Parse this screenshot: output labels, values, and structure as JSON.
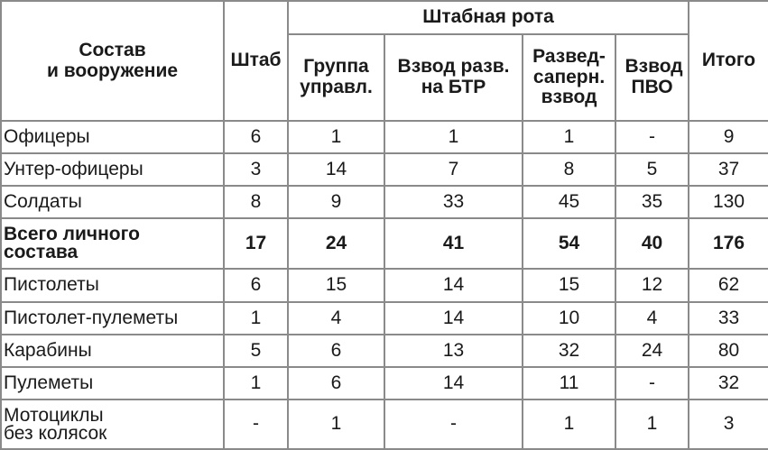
{
  "header": {
    "composition": "Состав\nи вооружение",
    "hq": "Штаб",
    "company": "Штабная рота",
    "subunits": [
      "Группа управл.",
      "Взвод разв. на БТР",
      "Развед-саперн. взвод",
      "Взвод ПВО"
    ],
    "total": "Итого"
  },
  "rows": [
    {
      "label": "Офицеры",
      "values": [
        "6",
        "1",
        "1",
        "1",
        "-",
        "9"
      ],
      "bold": false
    },
    {
      "label": "Унтер-офицеры",
      "values": [
        "3",
        "14",
        "7",
        "8",
        "5",
        "37"
      ],
      "bold": false
    },
    {
      "label": "Солдаты",
      "values": [
        "8",
        "9",
        "33",
        "45",
        "35",
        "130"
      ],
      "bold": false
    },
    {
      "label": "Всего личного состава",
      "values": [
        "17",
        "24",
        "41",
        "54",
        "40",
        "176"
      ],
      "bold": true
    },
    {
      "label": "Пистолеты",
      "values": [
        "6",
        "15",
        "14",
        "15",
        "12",
        "62"
      ],
      "bold": false
    },
    {
      "label": "Пистолет-пулеметы",
      "values": [
        "1",
        "4",
        "14",
        "10",
        "4",
        "33"
      ],
      "bold": false
    },
    {
      "label": "Карабины",
      "values": [
        "5",
        "6",
        "13",
        "32",
        "24",
        "80"
      ],
      "bold": false
    },
    {
      "label": "Пулеметы",
      "values": [
        "1",
        "6",
        "14",
        "11",
        "-",
        "32"
      ],
      "bold": false
    },
    {
      "label": "Мотоциклы без колясок",
      "values": [
        "-",
        "1",
        "-",
        "1",
        "1",
        "3"
      ],
      "bold": false
    }
  ]
}
